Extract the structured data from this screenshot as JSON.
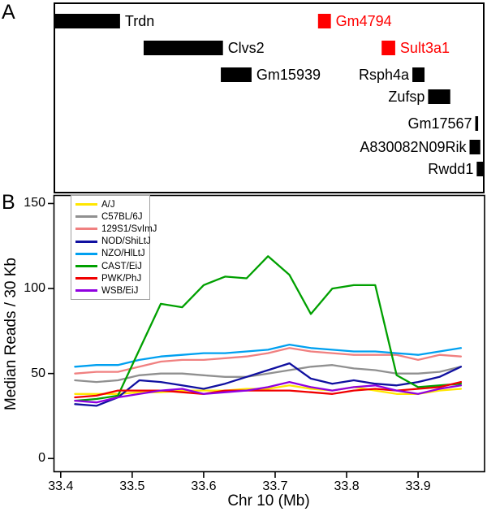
{
  "panel_a": {
    "label": "A",
    "axis_mb": {
      "min": 33.39,
      "max": 33.993
    },
    "genes": [
      {
        "name": "Trdn",
        "row": 0,
        "start": 33.39,
        "end": 33.483,
        "color": "#000000",
        "label_side": "right"
      },
      {
        "name": "Gm4794",
        "row": 0,
        "start": 33.76,
        "end": 33.778,
        "color": "#ff0000",
        "label_side": "right"
      },
      {
        "name": "Clvs2",
        "row": 1,
        "start": 33.516,
        "end": 33.627,
        "color": "#000000",
        "label_side": "right"
      },
      {
        "name": "Sult3a1",
        "row": 1,
        "start": 33.849,
        "end": 33.868,
        "color": "#ff0000",
        "label_side": "right"
      },
      {
        "name": "Gm15939",
        "row": 2,
        "start": 33.624,
        "end": 33.667,
        "color": "#000000",
        "label_side": "right"
      },
      {
        "name": "Rsph4a",
        "row": 2,
        "start": 33.892,
        "end": 33.909,
        "color": "#000000",
        "label_side": "left"
      },
      {
        "name": "Zufsp",
        "row": 3,
        "start": 33.914,
        "end": 33.945,
        "color": "#000000",
        "label_side": "left"
      },
      {
        "name": "Gm17567",
        "row": 4,
        "start": 33.98,
        "end": 33.984,
        "color": "#000000",
        "label_side": "left"
      },
      {
        "name": "A830082N09Rik",
        "row": 5,
        "start": 33.972,
        "end": 33.987,
        "color": "#000000",
        "label_side": "left"
      },
      {
        "name": "Rwdd1",
        "row": 6,
        "start": 33.982,
        "end": 33.993,
        "color": "#000000",
        "label_side": "left"
      }
    ]
  },
  "panel_b": {
    "label": "B",
    "legend_border_color": "#a0a0a0"
  },
  "chart_data": {
    "type": "line",
    "title": "",
    "xlabel": "Chr 10 (Mb)",
    "ylabel": "Median Reads / 30 Kb",
    "xlim": [
      33.39,
      33.993
    ],
    "ylim": [
      -8,
      155
    ],
    "xticks": [
      33.4,
      33.5,
      33.6,
      33.7,
      33.8,
      33.9
    ],
    "yticks": [
      0,
      50,
      100,
      150
    ],
    "grid": false,
    "legend_position": "top-left",
    "x": [
      33.42,
      33.45,
      33.48,
      33.51,
      33.54,
      33.57,
      33.6,
      33.63,
      33.66,
      33.69,
      33.72,
      33.75,
      33.78,
      33.81,
      33.84,
      33.87,
      33.9,
      33.93,
      33.96
    ],
    "series": [
      {
        "name": "A/J",
        "color": "#ffe600",
        "values": [
          38,
          38,
          38,
          39,
          39,
          40,
          40,
          40,
          41,
          41,
          43,
          41,
          40,
          42,
          40,
          38,
          38,
          40,
          41
        ]
      },
      {
        "name": "C57BL/6J",
        "color": "#909090",
        "values": [
          46,
          45,
          46,
          49,
          50,
          50,
          49,
          48,
          48,
          50,
          52,
          54,
          55,
          53,
          52,
          50,
          50,
          51,
          54
        ]
      },
      {
        "name": "129S1/SvImJ",
        "color": "#f08080",
        "values": [
          50,
          51,
          51,
          54,
          57,
          58,
          58,
          59,
          60,
          62,
          65,
          63,
          62,
          61,
          61,
          61,
          58,
          61,
          60
        ]
      },
      {
        "name": "NOD/ShiLtJ",
        "color": "#1010a0",
        "values": [
          32,
          31,
          36,
          46,
          45,
          43,
          41,
          44,
          48,
          52,
          56,
          47,
          44,
          46,
          44,
          43,
          45,
          48,
          54
        ]
      },
      {
        "name": "NZO/HlLtJ",
        "color": "#00a0f0",
        "values": [
          54,
          55,
          55,
          58,
          60,
          61,
          62,
          62,
          63,
          64,
          67,
          65,
          64,
          63,
          63,
          62,
          61,
          63,
          65
        ]
      },
      {
        "name": "CAST/EiJ",
        "color": "#00a000",
        "values": [
          34,
          35,
          37,
          64,
          91,
          89,
          102,
          107,
          106,
          119,
          108,
          85,
          100,
          102,
          102,
          49,
          42,
          43,
          44
        ]
      },
      {
        "name": "PWK/PhJ",
        "color": "#f00000",
        "values": [
          36,
          37,
          40,
          40,
          40,
          39,
          38,
          40,
          40,
          40,
          40,
          39,
          38,
          40,
          41,
          40,
          41,
          42,
          45
        ]
      },
      {
        "name": "WSB/EiJ",
        "color": "#9000e0",
        "values": [
          34,
          33,
          36,
          38,
          40,
          41,
          38,
          39,
          40,
          42,
          45,
          42,
          40,
          42,
          43,
          40,
          38,
          41,
          43
        ]
      }
    ]
  }
}
